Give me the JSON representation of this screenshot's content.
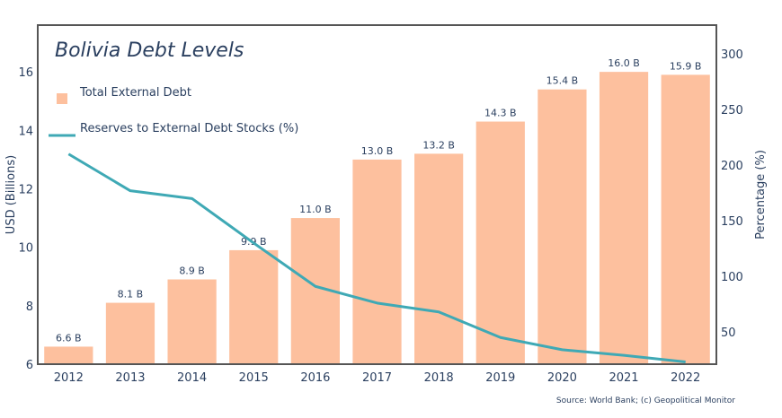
{
  "chart_data": {
    "type": "bar",
    "title": "Bolivia Debt Levels",
    "xlabel": "",
    "ylabel": "USD (Billions)",
    "y2label": "Percentage (%)",
    "categories": [
      "2012",
      "2013",
      "2014",
      "2015",
      "2016",
      "2017",
      "2018",
      "2019",
      "2020",
      "2021",
      "2022"
    ],
    "series": [
      {
        "name": "Total External Debt",
        "type": "bar",
        "axis": "left",
        "color": "#fdc09e",
        "values": [
          6.6,
          8.1,
          8.9,
          9.9,
          11.0,
          13.0,
          13.2,
          14.3,
          15.4,
          16.0,
          15.9
        ],
        "labels": [
          "6.6 B",
          "8.1 B",
          "8.9 B",
          "9.9 B",
          "11.0 B",
          "13.0 B",
          "13.2 B",
          "14.3 B",
          "15.4 B",
          "16.0 B",
          "15.9 B"
        ]
      },
      {
        "name": "Reserves to External Debt Stocks (%)",
        "type": "line",
        "axis": "right",
        "color": "#3fa9b5",
        "values": [
          210,
          177,
          170,
          130,
          91,
          76,
          68,
          45,
          34,
          29,
          23
        ]
      }
    ],
    "ylim": [
      6,
      17.6
    ],
    "yticks": [
      6,
      8,
      10,
      12,
      14,
      16
    ],
    "y2lim": [
      21,
      326
    ],
    "y2ticks": [
      50,
      100,
      150,
      200,
      250,
      300
    ],
    "grid": false,
    "legend_position": "top-left",
    "source": "Source: World Bank; (c) Geopolitical Monitor"
  }
}
